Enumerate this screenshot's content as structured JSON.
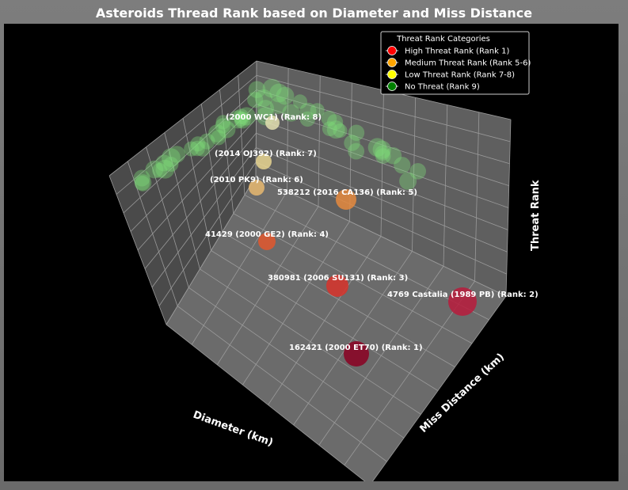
{
  "chart_data": {
    "type": "scatter3d",
    "title": "Asteroids Thread Rank based on Diameter and Miss Distance",
    "axes": {
      "x": {
        "label": "Diameter (km)"
      },
      "y": {
        "label": "Miss Distance (km)"
      },
      "z": {
        "label": "Threat Rank"
      }
    },
    "grid": true,
    "legend": {
      "title": "Threat Rank Categories",
      "placement": "top-right",
      "entries": [
        {
          "label": "High Threat Rank (Rank 1)",
          "color": "#ff0000"
        },
        {
          "label": "Medium Threat Rank (Rank 5-6)",
          "color": "#ffa500"
        },
        {
          "label": "Low Threat Rank (Rank 7-8)",
          "color": "#ffff00"
        },
        {
          "label": "No Threat (Rank 9)",
          "color": "#008000"
        }
      ]
    },
    "labeled_points": [
      {
        "name": "162421 (2000 ET70)",
        "rank": 1,
        "label": "162421 (2000 ET70) (Rank: 1)",
        "color": "#8b0022",
        "size": 32
      },
      {
        "name": "4769 Castalia (1989 PB)",
        "rank": 2,
        "label": "4769 Castalia (1989 PB) (Rank: 2)",
        "color": "#b81b3c",
        "size": 36
      },
      {
        "name": "380981 (2006 SU131)",
        "rank": 3,
        "label": "380981 (2006 SU131) (Rank: 3)",
        "color": "#d8322a",
        "size": 28
      },
      {
        "name": "41429 (2000 GE2)",
        "rank": 4,
        "label": "41429 (2000 GE2) (Rank: 4)",
        "color": "#e2572d",
        "size": 22
      },
      {
        "name": "538212 (2016 CA136)",
        "rank": 5,
        "label": "538212 (2016 CA136) (Rank: 5)",
        "color": "#e58a3e",
        "size": 26
      },
      {
        "name": "(2010 PK9)",
        "rank": 6,
        "label": "(2010 PK9) (Rank: 6)",
        "color": "#e8b870",
        "size": 20
      },
      {
        "name": "(2014 OJ392)",
        "rank": 7,
        "label": "(2014 OJ392) (Rank: 7)",
        "color": "#e8d590",
        "size": 20
      },
      {
        "name": "(2000 WC1)",
        "rank": 8,
        "label": "(2000 WC1) (Rank: 8)",
        "color": "#e3dfb0",
        "size": 18
      }
    ],
    "no_threat_count": 55
  }
}
